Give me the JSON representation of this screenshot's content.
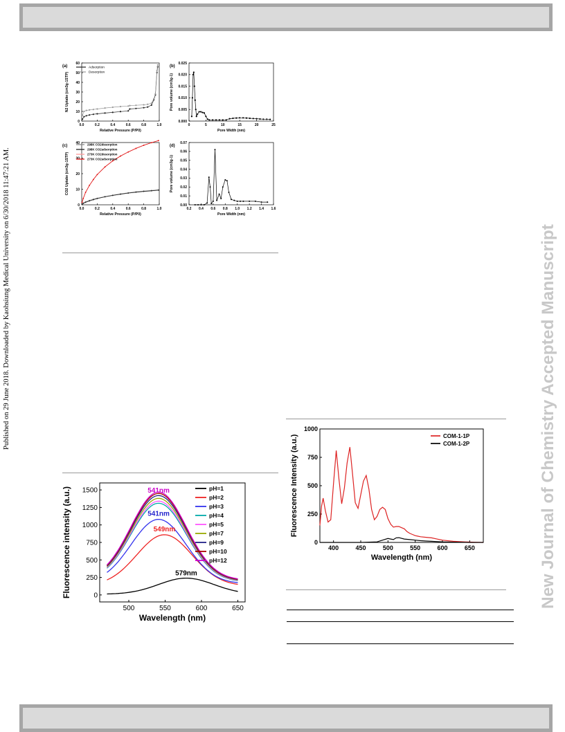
{
  "sidebar": {
    "left_text": "Published on 29 June 2018. Downloaded by Kaohsiung Medical University on 6/30/2018 11:47:21 AM.",
    "right_text": "New Journal of Chemistry Accepted Manuscript"
  },
  "chart_data": [
    {
      "type": "line",
      "panel": "(a)",
      "xlabel": "Relative Pressure  (P/P0)",
      "ylabel": "N2 Uptake  (cm3g-1STP)",
      "xlim": [
        0,
        1.0
      ],
      "ylim": [
        0,
        60
      ],
      "xticks": [
        "0.0",
        "0.2",
        "0.4",
        "0.6",
        "0.8",
        "1.0"
      ],
      "yticks": [
        "0",
        "10",
        "20",
        "30",
        "40",
        "50",
        "60"
      ],
      "legend": [
        "Adsorption",
        "Desorption"
      ],
      "legend_position": "top-left",
      "series": [
        {
          "name": "Adsorption",
          "color": "#222222",
          "x": [
            0.01,
            0.03,
            0.06,
            0.1,
            0.15,
            0.2,
            0.3,
            0.4,
            0.5,
            0.6,
            0.62,
            0.7,
            0.8,
            0.85,
            0.9,
            0.93,
            0.95,
            0.97,
            0.98
          ],
          "y": [
            2,
            4.5,
            5.5,
            6.3,
            7,
            7.5,
            8.3,
            9,
            9.8,
            10.5,
            12.5,
            13,
            13.8,
            14.5,
            16.5,
            22,
            27,
            50,
            56
          ]
        },
        {
          "name": "Desorption",
          "color": "#999999",
          "x": [
            0.01,
            0.03,
            0.06,
            0.1,
            0.15,
            0.2,
            0.3,
            0.4,
            0.5,
            0.6,
            0.62,
            0.7,
            0.8,
            0.85,
            0.9,
            0.93,
            0.95,
            0.97,
            0.98
          ],
          "y": [
            6,
            10,
            11,
            11.5,
            12,
            12.5,
            13.5,
            14.3,
            15,
            15.5,
            16,
            16.3,
            16.8,
            17.3,
            18.5,
            23,
            28,
            52,
            58
          ]
        }
      ]
    },
    {
      "type": "line",
      "panel": "(b)",
      "xlabel": "Pore Width  (nm)",
      "ylabel": "Pore volume  (cm3g-1)",
      "xlim": [
        0,
        25
      ],
      "ylim": [
        0,
        0.025
      ],
      "xticks": [
        "0",
        "5",
        "10",
        "15",
        "20",
        "25"
      ],
      "yticks": [
        "0.000",
        "0.005",
        "0.010",
        "0.015",
        "0.020",
        "0.025"
      ],
      "series": [
        {
          "name": "",
          "color": "#000000",
          "x": [
            0.8,
            1,
            1.2,
            1.4,
            1.6,
            1.8,
            2,
            2.2,
            2.5,
            3,
            3.5,
            4,
            4.5,
            5,
            5.5,
            6,
            7,
            8,
            9,
            10,
            11,
            12,
            13,
            14,
            15,
            16,
            17,
            18,
            19,
            20,
            21,
            22,
            23,
            24
          ],
          "y": [
            0.002,
            0.01,
            0.02,
            0.021,
            0.015,
            0.009,
            0.005,
            0.002,
            0.003,
            0.004,
            0.004,
            0.0037,
            0.0035,
            0.002,
            0.0008,
            0.0005,
            0.0005,
            0.0005,
            0.0005,
            0.0005,
            0.0005,
            0.001,
            0.0012,
            0.0013,
            0.0014,
            0.0014,
            0.0013,
            0.0012,
            0.0011,
            0.001,
            0.0009,
            0.0008,
            0.0008,
            0.0007
          ]
        }
      ]
    },
    {
      "type": "line",
      "panel": "(c)",
      "xlabel": "Relative Pressure  (P/P0)",
      "ylabel": "CO2 Uptake  (cm3g-1STP)",
      "xlim": [
        0,
        1.0
      ],
      "ylim": [
        0,
        40
      ],
      "xticks": [
        "0.0",
        "0.2",
        "0.4",
        "0.6",
        "0.8",
        "1.0"
      ],
      "yticks": [
        "0",
        "10",
        "20",
        "30",
        "40"
      ],
      "legend": [
        "298K CO2desorption",
        "298K CO2adsorption",
        "273K CO2desorption",
        "273K CO2adsorption"
      ],
      "legend_position": "top-left",
      "series": [
        {
          "name": "298K CO2desorption",
          "color": "#888888",
          "x": [
            0.005,
            0.02,
            0.05,
            0.1,
            0.15,
            0.2,
            0.3,
            0.4,
            0.5,
            0.6,
            0.7,
            0.8,
            0.9,
            0.99
          ],
          "y": [
            0.4,
            1.1,
            1.9,
            2.8,
            3.6,
            4.2,
            5.3,
            6.2,
            7,
            7.7,
            8.3,
            8.8,
            9.2,
            9.6
          ]
        },
        {
          "name": "298K CO2adsorption",
          "color": "#222222",
          "x": [
            0.005,
            0.02,
            0.05,
            0.1,
            0.15,
            0.2,
            0.3,
            0.4,
            0.5,
            0.6,
            0.7,
            0.8,
            0.9,
            0.99
          ],
          "y": [
            0.3,
            0.9,
            1.6,
            2.5,
            3.3,
            4,
            5.1,
            6,
            6.8,
            7.5,
            8.1,
            8.6,
            9,
            9.4
          ]
        },
        {
          "name": "273K CO2desorption",
          "color": "#ff9999",
          "x": [
            0.005,
            0.02,
            0.05,
            0.1,
            0.15,
            0.2,
            0.3,
            0.4,
            0.5,
            0.6,
            0.7,
            0.8,
            0.9,
            0.99
          ],
          "y": [
            1.6,
            4.2,
            8.1,
            12.6,
            16.3,
            19.5,
            24.4,
            28.3,
            31.4,
            34,
            36.3,
            38.3,
            40,
            41.3
          ]
        },
        {
          "name": "273K CO2adsorption",
          "color": "#dd1111",
          "x": [
            0.005,
            0.02,
            0.05,
            0.1,
            0.15,
            0.2,
            0.3,
            0.4,
            0.5,
            0.6,
            0.7,
            0.8,
            0.9,
            0.99
          ],
          "y": [
            1.5,
            4,
            8,
            12.5,
            16.2,
            19.4,
            24.3,
            28.2,
            31.3,
            33.9,
            36.2,
            38.2,
            39.9,
            41.2
          ]
        }
      ]
    },
    {
      "type": "line",
      "panel": "(d)",
      "xlabel": "Pore Width  (nm)",
      "ylabel": "Pore volume  (cm3g-1)",
      "xlim": [
        0.2,
        1.6
      ],
      "ylim": [
        0,
        0.07
      ],
      "xticks": [
        "0.2",
        "0.4",
        "0.6",
        "0.8",
        "1.0",
        "1.2",
        "1.4",
        "1.6"
      ],
      "yticks": [
        "0.00",
        "0.01",
        "0.02",
        "0.03",
        "0.04",
        "0.05",
        "0.06",
        "0.07"
      ],
      "series": [
        {
          "name": "",
          "color": "#000000",
          "x": [
            0.3,
            0.35,
            0.4,
            0.45,
            0.5,
            0.53,
            0.55,
            0.57,
            0.6,
            0.63,
            0.66,
            0.7,
            0.73,
            0.76,
            0.8,
            0.83,
            0.86,
            0.9,
            0.95,
            1.0,
            1.05,
            1.1,
            1.2,
            1.3,
            1.4,
            1.5
          ],
          "y": [
            0,
            0,
            0,
            0,
            0.002,
            0.031,
            0.02,
            0.0015,
            0.004,
            0.062,
            0.005,
            0.012,
            0.007,
            0.02,
            0.028,
            0.027,
            0.014,
            0.006,
            0.005,
            0.004,
            0.004,
            0.004,
            0.004,
            0.004,
            0.003,
            0.003
          ]
        }
      ]
    },
    {
      "type": "line",
      "xlabel": "Wavelength (nm)",
      "ylabel": "Fluorescence intensity (a.u.)",
      "xlim": [
        460,
        660
      ],
      "ylim": [
        -100,
        1600
      ],
      "xticks": [
        "500",
        "550",
        "600",
        "650"
      ],
      "yticks": [
        "0",
        "250",
        "500",
        "750",
        "1000",
        "1250",
        "1500"
      ],
      "legend_position": "top-right",
      "annotations": [
        {
          "text": "541nm",
          "x": 541,
          "y": 1460,
          "color": "#cc00cc"
        },
        {
          "text": "541nm",
          "x": 541,
          "y": 1130,
          "color": "#2222cc"
        },
        {
          "text": "549nm",
          "x": 549,
          "y": 910,
          "color": "#ee2222"
        },
        {
          "text": "579nm",
          "x": 579,
          "y": 280,
          "color": "#000000"
        }
      ],
      "series": [
        {
          "name": "pH=1",
          "color": "#000000",
          "peak_x": 579,
          "peak_y": 240,
          "edge": 10
        },
        {
          "name": "pH=2",
          "color": "#ee2222",
          "peak_x": 549,
          "peak_y": 860,
          "edge": 130
        },
        {
          "name": "pH=3",
          "color": "#3333ee",
          "peak_x": 541,
          "peak_y": 1080,
          "edge": 160
        },
        {
          "name": "pH=4",
          "color": "#00aaaa",
          "peak_x": 541,
          "peak_y": 1310,
          "edge": 185
        },
        {
          "name": "pH=5",
          "color": "#ff55ff",
          "peak_x": 541,
          "peak_y": 1340,
          "edge": 190
        },
        {
          "name": "pH=7",
          "color": "#99aa00",
          "peak_x": 541,
          "peak_y": 1380,
          "edge": 195
        },
        {
          "name": "pH=9",
          "color": "#222288",
          "peak_x": 541,
          "peak_y": 1420,
          "edge": 200
        },
        {
          "name": "pH=10",
          "color": "#aa0000",
          "peak_x": 541,
          "peak_y": 1450,
          "edge": 205
        },
        {
          "name": "pH=12",
          "color": "#cc00cc",
          "peak_x": 541,
          "peak_y": 1470,
          "edge": 210
        }
      ]
    },
    {
      "type": "line",
      "xlabel": "Wavelength (nm)",
      "ylabel": "Fluorescence Intensity (a.u.)",
      "xlim": [
        375,
        675
      ],
      "ylim": [
        0,
        1000
      ],
      "xticks": [
        "400",
        "450",
        "500",
        "550",
        "600",
        "650"
      ],
      "yticks": [
        "0",
        "250",
        "500",
        "750",
        "1000"
      ],
      "legend_position": "top-right",
      "series": [
        {
          "name": "COM-1-1P",
          "color": "#dd2222",
          "x": [
            375,
            378,
            381,
            385,
            390,
            395,
            400,
            405,
            410,
            415,
            420,
            425,
            430,
            435,
            440,
            445,
            450,
            455,
            460,
            465,
            470,
            475,
            480,
            485,
            490,
            495,
            500,
            505,
            510,
            515,
            520,
            525,
            530,
            535,
            540,
            545,
            550,
            555,
            560,
            570,
            580,
            590,
            600,
            620,
            640,
            660,
            675
          ],
          "y": [
            150,
            320,
            390,
            280,
            180,
            200,
            520,
            810,
            560,
            340,
            480,
            700,
            840,
            600,
            350,
            300,
            420,
            540,
            590,
            470,
            290,
            200,
            230,
            290,
            310,
            290,
            210,
            160,
            135,
            140,
            140,
            130,
            120,
            95,
            80,
            70,
            60,
            55,
            50,
            45,
            40,
            30,
            20,
            10,
            5,
            2,
            0
          ]
        },
        {
          "name": "COM-1-2P",
          "color": "#000000",
          "x": [
            375,
            400,
            450,
            480,
            490,
            500,
            505,
            510,
            515,
            520,
            530,
            540,
            550,
            560,
            570,
            580,
            600,
            650,
            675
          ],
          "y": [
            0,
            0,
            0,
            5,
            20,
            35,
            30,
            25,
            40,
            42,
            30,
            25,
            20,
            15,
            12,
            10,
            5,
            0,
            0
          ]
        }
      ]
    }
  ]
}
